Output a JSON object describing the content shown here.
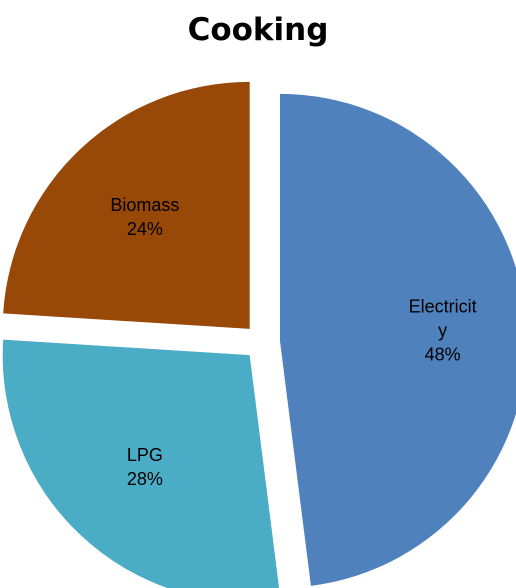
{
  "chart_data": {
    "type": "pie",
    "title": "Cooking",
    "start_angle_deg": 0,
    "direction": "clockwise",
    "exploded": true,
    "slices": [
      {
        "name": "Electricity",
        "value": 48,
        "label_lines": [
          "Electricit",
          "y",
          "48%"
        ],
        "color": "#4f81bd"
      },
      {
        "name": "LPG",
        "value": 28,
        "label_lines": [
          "LPG",
          "28%"
        ],
        "color": "#4bacc6"
      },
      {
        "name": "Biomass",
        "value": 24,
        "label_lines": [
          "Biomass",
          "24%"
        ],
        "color": "#984807"
      }
    ]
  }
}
